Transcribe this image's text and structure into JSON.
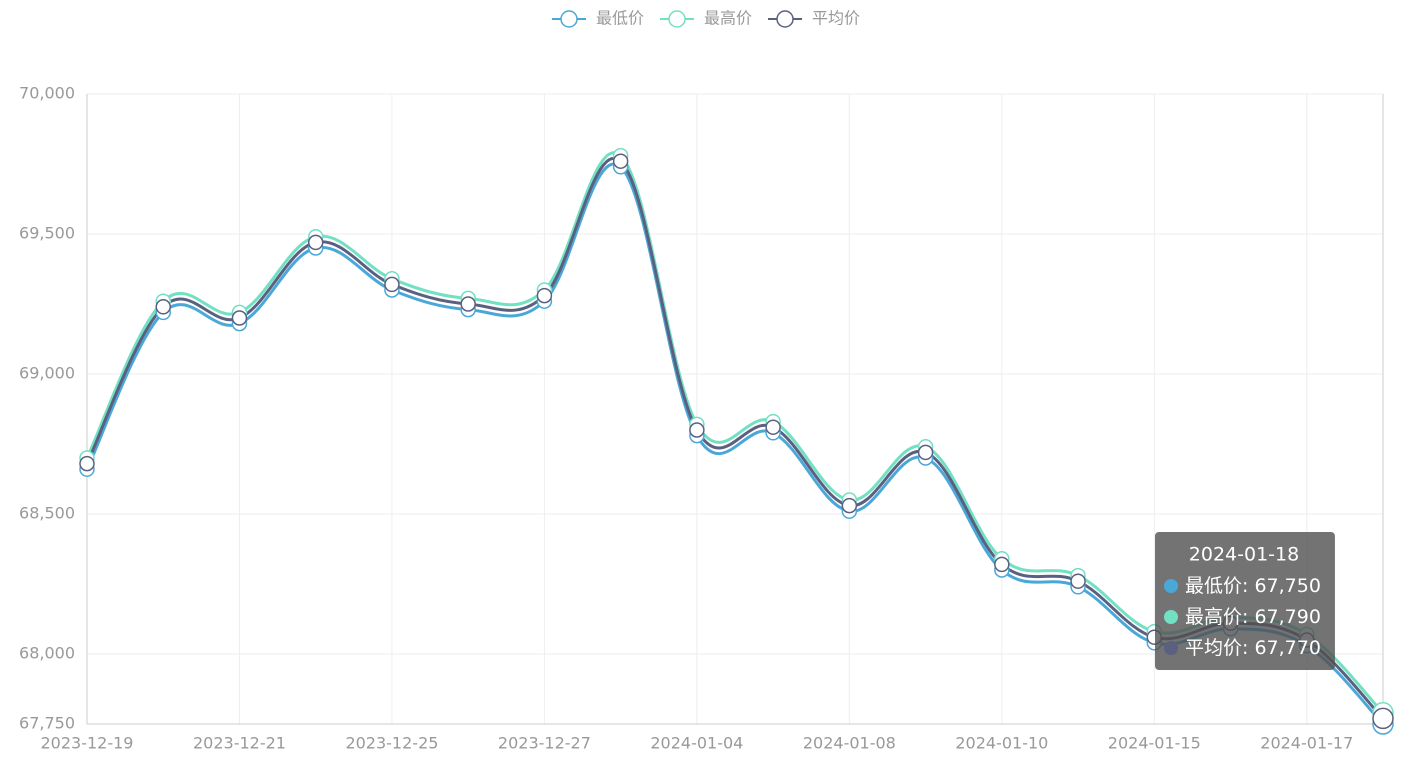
{
  "chart_data": {
    "type": "line",
    "smooth": true,
    "grid": true,
    "categories": [
      "2023-12-19",
      null,
      "2023-12-21",
      null,
      "2023-12-25",
      null,
      "2023-12-27",
      null,
      "2024-01-04",
      null,
      "2024-01-08",
      null,
      "2024-01-10",
      null,
      "2024-01-15",
      null,
      "2024-01-17",
      "2024-01-18"
    ],
    "ylim": [
      67750,
      70000
    ],
    "yticks": [
      {
        "value": 67750,
        "label": "67,750"
      },
      {
        "value": 68000,
        "label": "68,000"
      },
      {
        "value": 68500,
        "label": "68,500"
      },
      {
        "value": 69000,
        "label": "69,000"
      },
      {
        "value": 69500,
        "label": "69,500"
      },
      {
        "value": 70000,
        "label": "70,000"
      }
    ],
    "legend": "top",
    "series": [
      {
        "name": "最低价",
        "color": "#4aa8d8",
        "values": [
          68660,
          69220,
          69180,
          69450,
          69300,
          69230,
          69260,
          69740,
          68780,
          68790,
          68510,
          68700,
          68300,
          68240,
          68040,
          68090,
          68030,
          67750
        ],
        "value_labels": [
          null,
          null,
          null,
          null,
          null,
          null,
          null,
          null,
          null,
          null,
          null,
          null,
          null,
          null,
          null,
          null,
          null,
          "67,750"
        ]
      },
      {
        "name": "最高价",
        "color": "#72e0c2",
        "values": [
          68700,
          69260,
          69220,
          69490,
          69340,
          69270,
          69300,
          69780,
          68820,
          68830,
          68550,
          68740,
          68340,
          68280,
          68080,
          68130,
          68070,
          67790
        ],
        "value_labels": [
          null,
          null,
          null,
          null,
          null,
          null,
          null,
          null,
          null,
          null,
          null,
          null,
          null,
          null,
          null,
          null,
          null,
          "67,790"
        ]
      },
      {
        "name": "平均价",
        "color": "#5b6080",
        "values": [
          68680,
          69240,
          69200,
          69470,
          69320,
          69250,
          69280,
          69760,
          68800,
          68810,
          68530,
          68720,
          68320,
          68260,
          68060,
          68110,
          68050,
          67770
        ],
        "value_labels": [
          null,
          null,
          null,
          null,
          null,
          null,
          null,
          null,
          null,
          null,
          null,
          null,
          null,
          null,
          null,
          null,
          null,
          "67,770"
        ]
      }
    ],
    "tooltip": {
      "index": 17
    }
  }
}
